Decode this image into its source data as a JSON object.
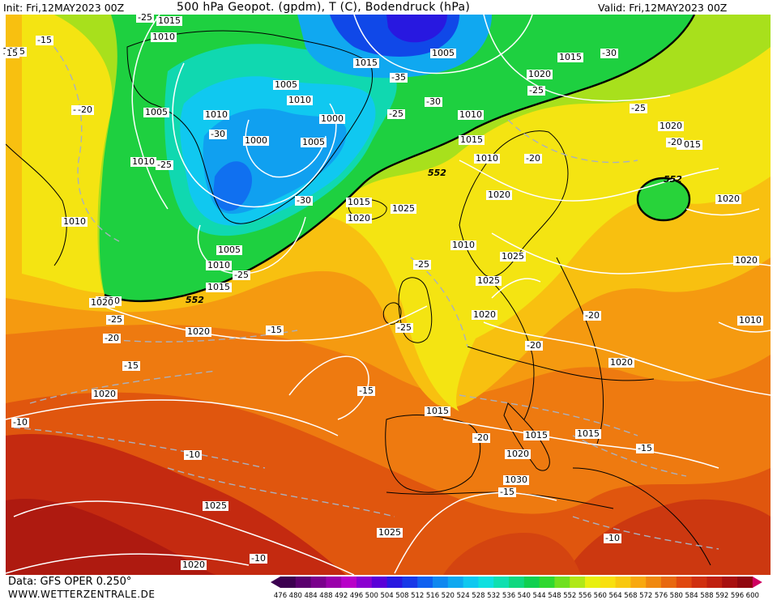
{
  "header": {
    "init_label": "Init: Fri,12MAY2023 00Z",
    "title": "500 hPa Geopot. (gpdm), T (C), Bodendruck (hPa)",
    "valid_label": "Valid: Fri,12MAY2023 00Z"
  },
  "footer": {
    "data_source": "Data: GFS OPER 0.250°",
    "website": "WWW.WETTERZENTRALE.DE"
  },
  "legend": {
    "values": [
      "476",
      "480",
      "484",
      "488",
      "492",
      "496",
      "500",
      "504",
      "508",
      "512",
      "516",
      "520",
      "524",
      "528",
      "532",
      "536",
      "540",
      "544",
      "548",
      "552",
      "556",
      "560",
      "564",
      "568",
      "572",
      "576",
      "580",
      "584",
      "588",
      "592",
      "596",
      "600"
    ],
    "colors": [
      "#3c0050",
      "#5a006e",
      "#7a008c",
      "#9a00aa",
      "#b800c8",
      "#8a00d0",
      "#5a00d8",
      "#2a18e0",
      "#1838e8",
      "#1060f0",
      "#1088f0",
      "#10a8f0",
      "#10c8f0",
      "#10e0e0",
      "#10e0b0",
      "#10d880",
      "#10d050",
      "#30d830",
      "#70e020",
      "#b0e818",
      "#e8f010",
      "#f8e010",
      "#f8c810",
      "#f8a810",
      "#f08810",
      "#e86810",
      "#e04810",
      "#d03010",
      "#c02010",
      "#a81010",
      "#900810",
      "#d00060"
    ]
  },
  "map_labels": {
    "isobars": [
      "1015",
      "1010",
      "1005",
      "1010",
      "1005",
      "1000",
      "1005",
      "1010",
      "1000",
      "1015",
      "1010",
      "1005",
      "1015",
      "1010",
      "1005",
      "1010",
      "1015",
      "1020",
      "1025",
      "1020",
      "1015",
      "1015",
      "1020",
      "1020",
      "1025",
      "1025",
      "1020",
      "1030",
      "1020",
      "1025",
      "1015",
      "1020",
      "1015",
      "1015",
      "1015",
      "1020",
      "1020",
      "1010",
      "1020",
      "1020",
      "1025",
      "1020",
      "1010",
      "1015",
      "1010",
      "1010",
      "1020",
      "1020"
    ],
    "temperatures": [
      "-25",
      "-15",
      "-20",
      "-25",
      "-30",
      "-35",
      "-30",
      "-25",
      "-30",
      "-25",
      "-20",
      "-20",
      "-25",
      "-30",
      "-20",
      "-25",
      "-15",
      "-20",
      "-15",
      "-25",
      "-15",
      "-25",
      "-20",
      "-20",
      "-20",
      "-25",
      "-15",
      "-10",
      "-10",
      "-15",
      "-10",
      "-10"
    ],
    "geopotential": [
      "552",
      "552",
      "552"
    ],
    "edge_markers": [
      "15"
    ]
  }
}
